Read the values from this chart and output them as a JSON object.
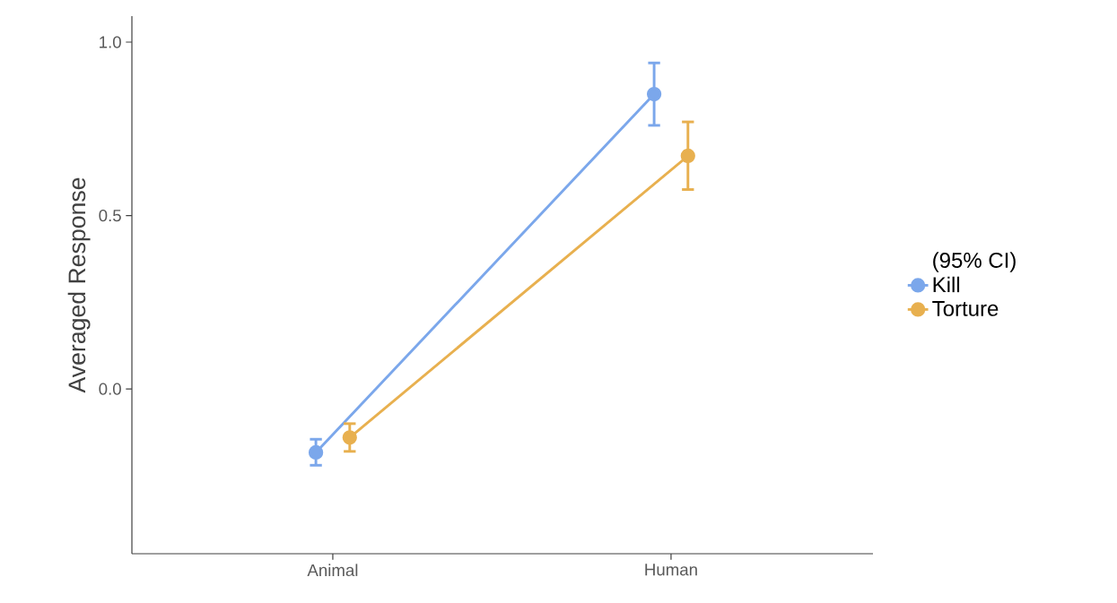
{
  "chart_data": {
    "type": "line",
    "ylabel": "Averaged Response",
    "legend_title": "(95% CI)",
    "categories": [
      "Animal",
      "Human"
    ],
    "series": [
      {
        "name": "Kill",
        "color": "#7ba7eb",
        "values": [
          -0.183,
          0.85
        ],
        "errors": [
          [
            -0.22,
            -0.145
          ],
          [
            0.76,
            0.94
          ]
        ]
      },
      {
        "name": "Torture",
        "color": "#e8b04f",
        "values": [
          -0.14,
          0.672
        ],
        "errors": [
          [
            -0.18,
            -0.1
          ],
          [
            0.575,
            0.77
          ]
        ]
      }
    ],
    "ylim": [
      -0.475,
      1.075
    ],
    "yticks": [
      {
        "value": 0,
        "label": "0.0"
      },
      0.5,
      {
        "value": 1,
        "label": "1.0"
      }
    ],
    "legend": "right",
    "marker": "circle",
    "line_style": "solid",
    "grid": false
  }
}
